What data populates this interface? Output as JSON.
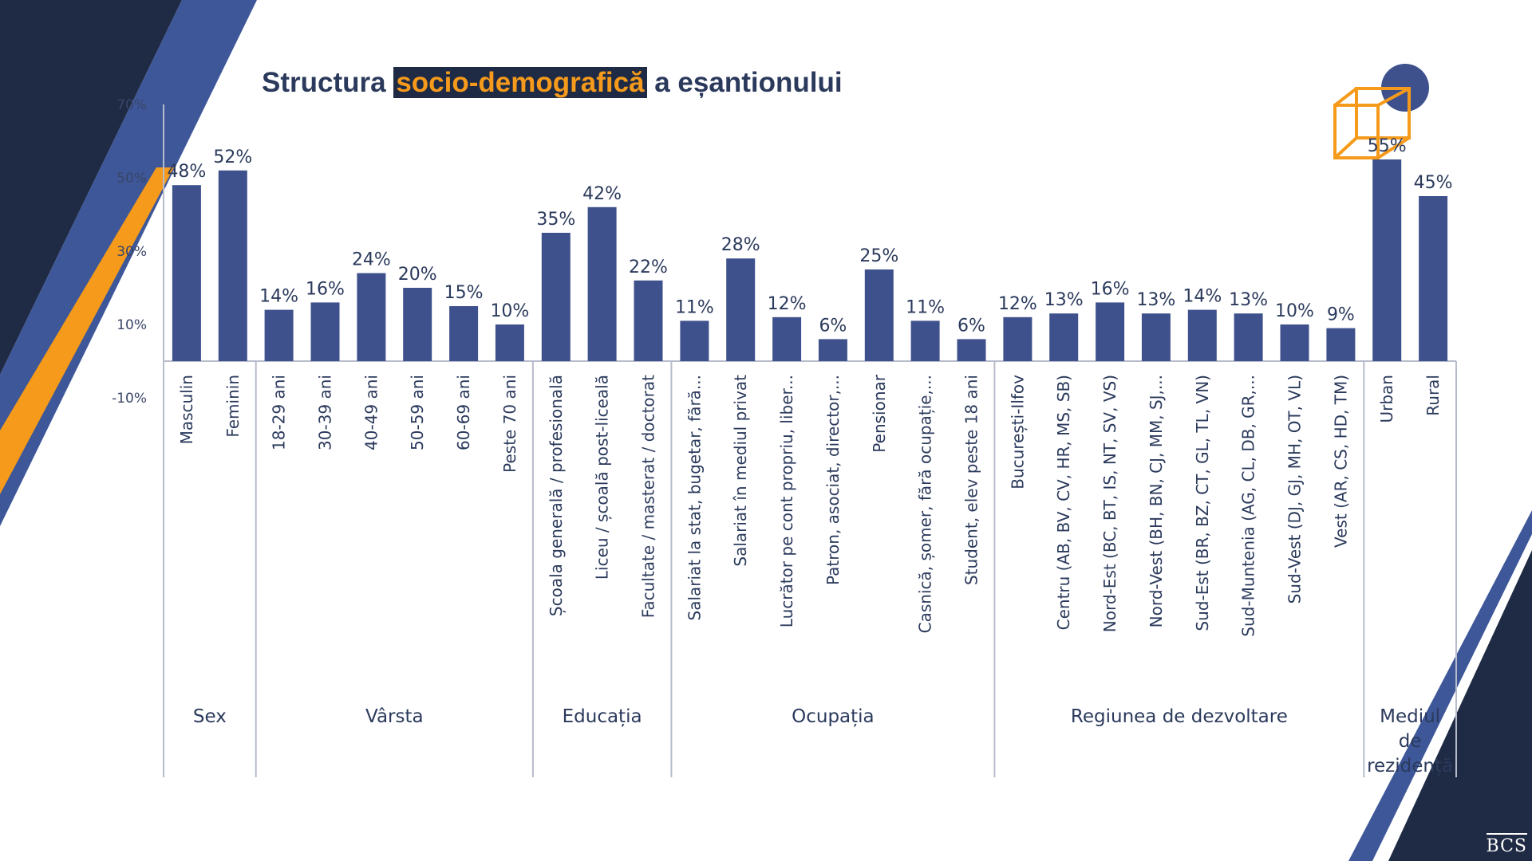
{
  "title": {
    "before": "Structura ",
    "highlight": "socio-demografică",
    "after": " a eșantionului"
  },
  "logo": "BCS",
  "colors": {
    "bar": "#3f518d",
    "navy": "#1f2a44",
    "accent": "#f59a1b",
    "stripe": "#3d5799"
  },
  "chart_data": {
    "type": "bar",
    "ylim": [
      -10,
      70
    ],
    "y_ticks": [
      "70%",
      "50%",
      "30%",
      "10%",
      "-10%"
    ],
    "y_tick_values": [
      70,
      50,
      30,
      10,
      -10
    ],
    "categories": [
      "Masculin",
      "Feminin",
      "18-29 ani",
      "30-39 ani",
      "40-49 ani",
      "50-59 ani",
      "60-69 ani",
      "Peste 70 ani",
      "Școala generală / profesională",
      "Liceu / școală post-liceală",
      "Facultate / masterat / doctorat",
      "Salariat la stat, bugetar, fără...",
      "Salariat în mediul privat",
      "Lucrător pe cont propriu, liber...",
      "Patron, asociat, director,...",
      "Pensionar",
      "Casnică, șomer, fără ocupație,...",
      "Student, elev peste 18 ani",
      "București-Ilfov",
      "Centru (AB, BV, CV, HR, MS, SB)",
      "Nord-Est (BC, BT, IS, NT, SV, VS)",
      "Nord-Vest (BH, BN, CJ, MM, SJ,...",
      "Sud-Est (BR, BZ, CT, GL, TL, VN)",
      "Sud-Muntenia (AG, CL, DB, GR,...",
      "Sud-Vest (DJ, GJ, MH, OT, VL)",
      "Vest (AR, CS, HD, TM)",
      "Urban",
      "Rural"
    ],
    "values": [
      48,
      52,
      14,
      16,
      24,
      20,
      15,
      10,
      35,
      42,
      22,
      11,
      28,
      12,
      6,
      25,
      11,
      6,
      12,
      13,
      16,
      13,
      14,
      13,
      10,
      9,
      55,
      45
    ],
    "value_labels": [
      "48%",
      "52%",
      "14%",
      "16%",
      "24%",
      "20%",
      "15%",
      "10%",
      "35%",
      "42%",
      "22%",
      "11%",
      "28%",
      "12%",
      "6%",
      "25%",
      "11%",
      "6%",
      "12%",
      "13%",
      "16%",
      "13%",
      "14%",
      "13%",
      "10%",
      "9%",
      "55%",
      "45%"
    ],
    "groups": [
      {
        "name": "Sex",
        "count": 2
      },
      {
        "name": "Vârsta",
        "count": 6
      },
      {
        "name": "Educația",
        "count": 3
      },
      {
        "name": "Ocupația",
        "count": 7
      },
      {
        "name": "Regiunea de dezvoltare",
        "count": 8
      },
      {
        "name": "Mediul de rezidență",
        "count": 2,
        "lines": [
          "Mediul",
          "de",
          "rezidență"
        ]
      }
    ]
  }
}
